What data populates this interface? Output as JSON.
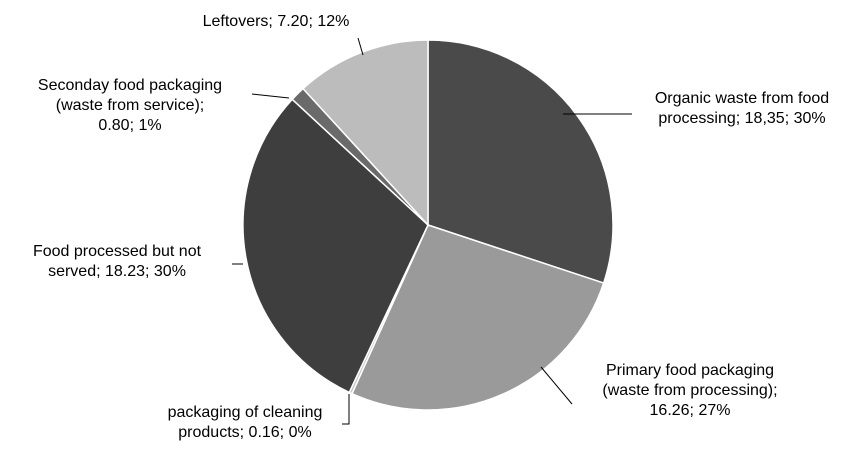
{
  "chart_data": {
    "type": "pie",
    "title": "",
    "slices": [
      {
        "label": "Organic waste from food processing",
        "value": 18.35,
        "percent": "30%",
        "color": "#4a4a4a",
        "lines": [
          "Organic waste from food",
          "processing; 18,35; 30%"
        ]
      },
      {
        "label": "Primary food packaging (waste from processing)",
        "value": 16.26,
        "percent": "27%",
        "color": "#9a9a9a",
        "lines": [
          "Primary food packaging",
          "(waste from processing);",
          "16.26; 27%"
        ]
      },
      {
        "label": "packaging of cleaning products",
        "value": 0.16,
        "percent": "0%",
        "color": "#c6c6c6",
        "lines": [
          "packaging of cleaning",
          "products; 0.16; 0%"
        ]
      },
      {
        "label": "Food processed but not served",
        "value": 18.23,
        "percent": "30%",
        "color": "#3e3e3e",
        "lines": [
          "Food processed but not",
          "served; 18.23; 30%"
        ]
      },
      {
        "label": "Seconday food packaging (waste from service)",
        "value": 0.8,
        "percent": "1%",
        "color": "#6a6a6a",
        "lines": [
          "Seconday food packaging",
          "(waste from service);",
          "0.80; 1%"
        ]
      },
      {
        "label": "Leftovers",
        "value": 7.2,
        "percent": "12%",
        "color": "#bcbcbc",
        "lines": [
          "Leftovers; 7.20; 12%"
        ]
      }
    ],
    "legend": "none",
    "start_angle": "12 o'clock",
    "direction": "clockwise"
  }
}
